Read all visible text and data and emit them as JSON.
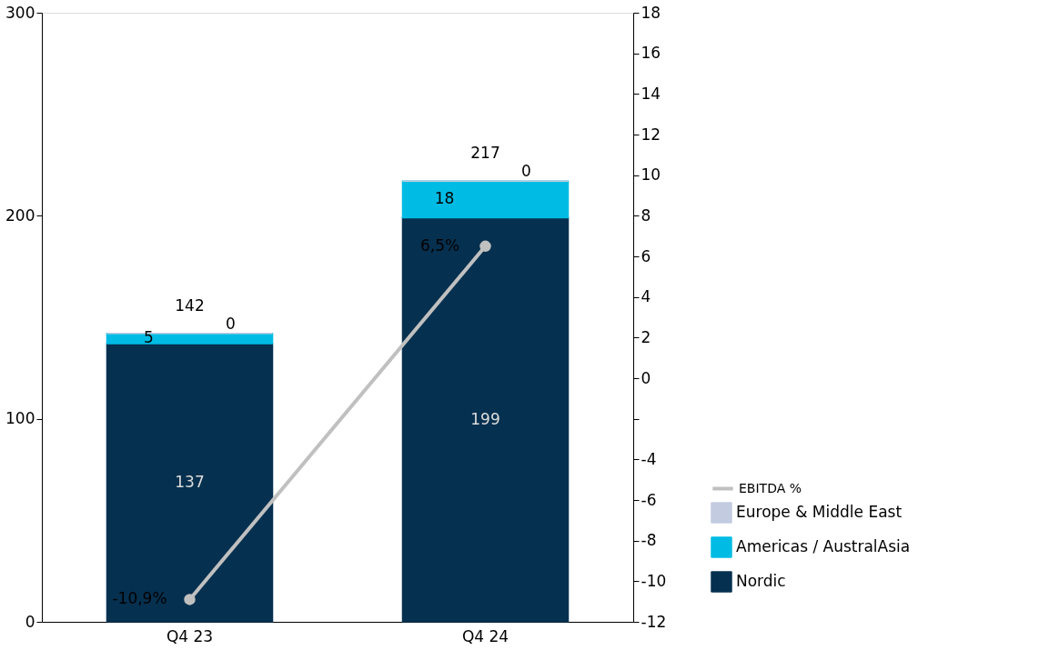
{
  "chart_data": {
    "type": "bar",
    "stacked": true,
    "categories": [
      "Q4 23",
      "Q4 24"
    ],
    "series": [
      {
        "name": "Nordic",
        "color": "#06304f",
        "values": [
          137,
          199
        ]
      },
      {
        "name": "Americas / AustralAsia",
        "color": "#00bce4",
        "values": [
          5,
          18
        ]
      },
      {
        "name": "Europe & Middle East",
        "color": "#c2cbe0",
        "values": [
          0,
          0
        ]
      },
      {
        "name": "EBITDA %",
        "type": "line",
        "axis": "y2",
        "color": "#c0c0c0",
        "marker": "circle",
        "values": [
          -10.9,
          6.5
        ],
        "value_labels": [
          "-10,9%",
          "6,5%"
        ]
      }
    ],
    "data_labels": true,
    "totals": [
      "142",
      "217"
    ],
    "ylim": [
      0,
      300
    ],
    "yticks": [
      0,
      100,
      200,
      300
    ],
    "y2lim": [
      -12,
      18
    ],
    "y2ticks": [
      -12,
      -10,
      -8,
      -6,
      -4,
      {
        "value": -2,
        "label": null
      },
      0,
      2,
      4,
      6,
      8,
      10,
      12,
      14,
      16,
      18
    ],
    "legend": "bottom right"
  }
}
